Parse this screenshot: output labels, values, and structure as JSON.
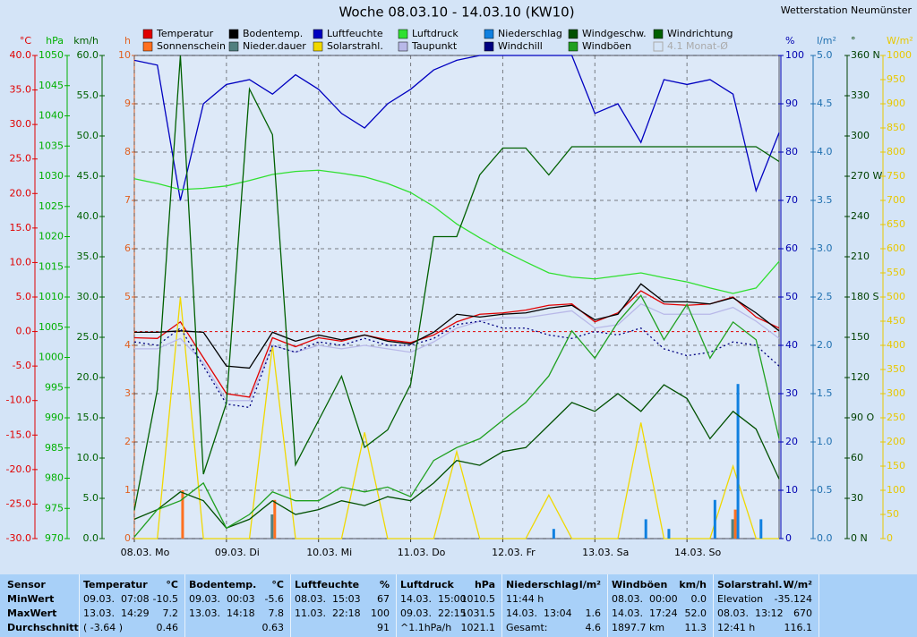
{
  "chart_data": {
    "type": "line",
    "title": "Woche 08.03.10 - 14.03.10 (KW10)",
    "station": "Wetterstation Neumünster",
    "x": [
      0,
      6,
      12,
      18,
      24,
      30,
      36,
      42,
      48,
      54,
      60,
      66,
      72,
      78,
      84,
      90,
      96,
      102,
      108,
      114,
      120,
      126,
      132,
      138,
      144,
      150,
      156,
      162,
      168
    ],
    "xlim": [
      0,
      168
    ],
    "xticks": [
      {
        "value": 0,
        "label": "08.03. Mo"
      },
      {
        "value": 24,
        "label": "09.03. Di"
      },
      {
        "value": 48,
        "label": "10.03. Mi"
      },
      {
        "value": 72,
        "label": "11.03. Do"
      },
      {
        "value": 96,
        "label": "12.03. Fr"
      },
      {
        "value": 120,
        "label": "13.03. Sa"
      },
      {
        "value": 144,
        "label": "14.03. So"
      }
    ],
    "grid": true,
    "left_axes": [
      {
        "unit": "°C",
        "color": "#e00000",
        "lim": [
          -30,
          40
        ],
        "ticks": [
          {
            "value": 40,
            "label": "40.0"
          },
          {
            "value": 35,
            "label": "35.0"
          },
          {
            "value": 30,
            "label": "30.0"
          },
          {
            "value": 25,
            "label": "25.0"
          },
          {
            "value": 20,
            "label": "20.0"
          },
          {
            "value": 15,
            "label": "15.0"
          },
          {
            "value": 10,
            "label": "10.0"
          },
          {
            "value": 5,
            "label": "5.0"
          },
          {
            "value": 0,
            "label": "0.0"
          },
          {
            "value": -5,
            "label": "-5.0"
          },
          {
            "value": -10,
            "label": "-10.0"
          },
          {
            "value": -15,
            "label": "-15.0"
          },
          {
            "value": -20,
            "label": "-20.0"
          },
          {
            "value": -25,
            "label": "-25.0"
          },
          {
            "value": -30,
            "label": "-30.0"
          }
        ]
      },
      {
        "unit": "hPa",
        "color": "#00b000",
        "lim": [
          970,
          1050
        ],
        "ticks": [
          1050,
          1045,
          1040,
          1035,
          1030,
          1025,
          1020,
          1015,
          1010,
          1005,
          1000,
          995,
          990,
          985,
          980,
          975,
          970
        ]
      },
      {
        "unit": "km/h",
        "color": "#006000",
        "lim": [
          0,
          60
        ],
        "ticks": [
          {
            "value": 60,
            "label": "60.0"
          },
          {
            "value": 55,
            "label": "55.0"
          },
          {
            "value": 50,
            "label": "50.0"
          },
          {
            "value": 45,
            "label": "45.0"
          },
          {
            "value": 40,
            "label": "40.0"
          },
          {
            "value": 35,
            "label": "35.0"
          },
          {
            "value": 30,
            "label": "30.0"
          },
          {
            "value": 25,
            "label": "25.0"
          },
          {
            "value": 20,
            "label": "20.0"
          },
          {
            "value": 15,
            "label": "15.0"
          },
          {
            "value": 10,
            "label": "10.0"
          },
          {
            "value": 5,
            "label": "5.0"
          },
          {
            "value": 0,
            "label": "0.0"
          }
        ]
      },
      {
        "unit": "h",
        "color": "#e06020",
        "lim": [
          0,
          10
        ],
        "ticks": [
          10,
          9,
          8,
          7,
          6,
          5,
          4,
          3,
          2,
          1,
          0
        ]
      }
    ],
    "right_axes": [
      {
        "unit": "%",
        "color": "#0000b0",
        "lim": [
          0,
          100
        ],
        "ticks": [
          100,
          90,
          80,
          70,
          60,
          50,
          40,
          30,
          20,
          10,
          0
        ]
      },
      {
        "unit": "l/m²",
        "color": "#2070b0",
        "lim": [
          0,
          5
        ],
        "ticks": [
          {
            "value": 5,
            "label": "5.0"
          },
          {
            "value": 4.5,
            "label": "4.5"
          },
          {
            "value": 4,
            "label": "4.0"
          },
          {
            "value": 3.5,
            "label": "3.5"
          },
          {
            "value": 3,
            "label": "3.0"
          },
          {
            "value": 2.5,
            "label": "2.5"
          },
          {
            "value": 2,
            "label": "2.0"
          },
          {
            "value": 1.5,
            "label": "1.5"
          },
          {
            "value": 1,
            "label": "1.0"
          },
          {
            "value": 0.5,
            "label": "0.5"
          },
          {
            "value": 0,
            "label": "0.0"
          }
        ]
      },
      {
        "unit": "°",
        "color": "#004000",
        "lim": [
          0,
          360
        ],
        "ticks": [
          {
            "value": 360,
            "label": "360 N"
          },
          330,
          300,
          {
            "value": 270,
            "label": "270 W"
          },
          240,
          210,
          {
            "value": 180,
            "label": "180 S"
          },
          150,
          120,
          {
            "value": 90,
            "label": "90 O"
          },
          60,
          30,
          {
            "value": 0,
            "label": "0 N"
          }
        ]
      },
      {
        "unit": "W/m²",
        "color": "#e8c800",
        "lim": [
          0,
          1000
        ],
        "ticks": [
          1000,
          950,
          900,
          850,
          800,
          750,
          700,
          650,
          600,
          550,
          500,
          450,
          400,
          350,
          300,
          250,
          200,
          150,
          100,
          50,
          0
        ]
      }
    ],
    "series": [
      {
        "name": "Temperatur",
        "color": "#e00000",
        "axis": "°C",
        "style": "line",
        "values": [
          -0.9,
          -1,
          1.4,
          -3.8,
          -9,
          -9.5,
          -0.9,
          -2.2,
          -0.9,
          -1.4,
          -0.5,
          -1.2,
          -1.6,
          -0.5,
          1.4,
          2.5,
          2.7,
          3.1,
          3.8,
          4,
          1.4,
          2.7,
          5.9,
          4,
          3.8,
          4,
          5,
          2.1,
          0.5
        ]
      },
      {
        "name": "Sonnenschein",
        "color": "#ff7020",
        "axis": "h",
        "style": "bar",
        "values": [
          0,
          0,
          1,
          0,
          0,
          0,
          0.8,
          0,
          0,
          0,
          0,
          0,
          0,
          0,
          0,
          0,
          0,
          0,
          0,
          0,
          0,
          0,
          0,
          0,
          0,
          0,
          0.6,
          0,
          0
        ]
      },
      {
        "name": "Bodentemp.",
        "color": "#000000",
        "axis": "°C",
        "style": "line",
        "values": [
          -0.1,
          -0.1,
          0.1,
          -0.1,
          -5,
          -5.3,
          -0.1,
          -1.4,
          -0.5,
          -1.2,
          -0.5,
          -1.4,
          -1.8,
          -0.1,
          2.5,
          2.1,
          2.5,
          2.7,
          3.4,
          3.8,
          1.7,
          2.5,
          6.9,
          4.3,
          4.3,
          4,
          4.9,
          2.7,
          0.1
        ]
      },
      {
        "name": "Nieder.dauer",
        "color": "#508080",
        "axis": "h",
        "style": "bar",
        "values": [
          0,
          0,
          0,
          0,
          0,
          0,
          0.5,
          0,
          0,
          0,
          0,
          0,
          0,
          0,
          0,
          0,
          0,
          0,
          0,
          0,
          0,
          0,
          0,
          0,
          0,
          0,
          0.4,
          0,
          0
        ]
      },
      {
        "name": "Luftfeuchte",
        "color": "#0000c0",
        "axis": "%",
        "style": "line",
        "values": [
          99,
          98,
          70,
          90,
          94,
          95,
          92,
          96,
          93,
          88,
          85,
          90,
          93,
          97,
          99,
          100,
          100,
          100,
          100,
          100,
          88,
          90,
          82,
          95,
          94,
          95,
          92,
          72,
          84
        ]
      },
      {
        "name": "Solarstrahl.",
        "color": "#f0d800",
        "axis": "W/m²",
        "style": "line",
        "values": [
          0,
          0,
          500,
          0,
          0,
          0,
          400,
          0,
          0,
          0,
          220,
          0,
          0,
          0,
          180,
          0,
          0,
          0,
          90,
          0,
          0,
          0,
          240,
          0,
          0,
          0,
          150,
          0,
          0
        ]
      },
      {
        "name": "Luftdruck",
        "color": "#30e030",
        "axis": "hPa",
        "style": "line",
        "values": [
          1029.6,
          1028.8,
          1027.8,
          1028,
          1028.4,
          1029.3,
          1030.3,
          1030.8,
          1031,
          1030.5,
          1029.9,
          1028.8,
          1027.3,
          1025,
          1022.1,
          1019.8,
          1017.7,
          1015.8,
          1014,
          1013.3,
          1013,
          1013.5,
          1014,
          1013.2,
          1012.5,
          1011.5,
          1010.6,
          1011.5,
          1015.9
        ]
      },
      {
        "name": "Taupunkt",
        "color": "#b8b8e8",
        "axis": "°C",
        "style": "line",
        "values": [
          -2.5,
          -2.5,
          -1,
          -4.5,
          -10,
          -10,
          -2,
          -3,
          -2,
          -2.5,
          -2,
          -2.5,
          -3,
          -1.5,
          0.5,
          1.5,
          2,
          2,
          2.5,
          3,
          0.5,
          1,
          4,
          2.5,
          2.5,
          2.5,
          3.5,
          1.5,
          -1
        ]
      },
      {
        "name": "Niederschlag",
        "color": "#1080e0",
        "axis": "l/m²",
        "style": "bar",
        "values": [
          0,
          0,
          0,
          0,
          0,
          0,
          0,
          0,
          0,
          0,
          0,
          0,
          0,
          0,
          0,
          0,
          0,
          0,
          0.1,
          0,
          0,
          0,
          0.2,
          0.1,
          0,
          0.4,
          1.6,
          0.2,
          0
        ]
      },
      {
        "name": "Windchill",
        "color": "#000080",
        "axis": "°C",
        "style": "dotted",
        "values": [
          -1.5,
          -2,
          0.5,
          -5,
          -10.5,
          -11,
          -2,
          -3,
          -1.5,
          -2,
          -1,
          -2,
          -2,
          -1,
          1,
          1.5,
          0.5,
          0.5,
          -0.5,
          -1,
          0,
          -0.5,
          0.5,
          -2.5,
          -3.5,
          -3,
          -1.5,
          -2,
          -5
        ]
      },
      {
        "name": "Windgeschw.",
        "color": "#005000",
        "axis": "km/h",
        "style": "line",
        "values": [
          2.4,
          3.6,
          5.8,
          4.7,
          1.3,
          2.4,
          4.7,
          3,
          3.6,
          4.7,
          4.1,
          5.2,
          4.7,
          6.9,
          9.7,
          9.1,
          10.8,
          11.3,
          14.1,
          16.9,
          15.8,
          18,
          15.8,
          19.1,
          17.4,
          12.4,
          15.8,
          13.6,
          7.4
        ]
      },
      {
        "name": "Windböen",
        "color": "#20a020",
        "axis": "km/h",
        "style": "line",
        "values": [
          0.2,
          3.6,
          4.7,
          6.9,
          1.3,
          3,
          5.8,
          4.7,
          4.7,
          6.4,
          5.8,
          6.4,
          5.2,
          9.7,
          11.3,
          12.4,
          14.7,
          16.9,
          20.2,
          25.8,
          22.4,
          26.9,
          30.2,
          24.7,
          29.1,
          22.4,
          26.9,
          24.7,
          12.4
        ]
      },
      {
        "name": "Windrichtung",
        "color": "#006000",
        "axis": "°",
        "style": "line",
        "values": [
          21,
          111,
          360,
          48,
          101,
          335,
          301,
          55,
          88,
          121,
          68,
          81,
          115,
          225,
          225,
          271,
          291,
          291,
          271,
          292,
          292,
          292,
          292,
          292,
          292,
          292,
          292,
          292,
          281
        ]
      }
    ],
    "monthly_average": {
      "name": "4.1 Monat-Ø",
      "checked": false
    }
  },
  "table": {
    "row_labels": [
      "Sensor",
      "MinWert",
      "MaxWert",
      "Durchschnitt"
    ],
    "columns": [
      {
        "title": "Temperatur",
        "unit": "°C",
        "rows": [
          {
            "left": "09.03.  07:08",
            "right": "-10.5"
          },
          {
            "left": "13.03.  14:29",
            "right": "7.2"
          },
          {
            "left": "( -3.64 )",
            "right": "0.46"
          }
        ]
      },
      {
        "title": "Bodentemp.",
        "unit": "°C",
        "rows": [
          {
            "left": "09.03.  00:03",
            "right": "-5.6"
          },
          {
            "left": "13.03.  14:18",
            "right": "7.8"
          },
          {
            "right": "0.63"
          }
        ]
      },
      {
        "title": "Luftfeuchte",
        "unit": "%",
        "rows": [
          {
            "left": "08.03.  15:03",
            "right": "67"
          },
          {
            "left": "11.03.  22:18",
            "right": "100"
          },
          {
            "right": "91"
          }
        ]
      },
      {
        "title": "Luftdruck",
        "unit": "hPa",
        "rows": [
          {
            "left": "14.03.  15:00",
            "right": "1010.5"
          },
          {
            "left": "09.03.  22:15",
            "right": "1031.5"
          },
          {
            "left": "^1.1hPa/h",
            "right": "1021.1"
          }
        ]
      },
      {
        "title": "Niederschlag",
        "unit": "l/m²",
        "rows": [
          {
            "left": "11:44 h"
          },
          {
            "left": "14.03.  13:04",
            "right": "1.6"
          },
          {
            "left": "Gesamt:",
            "right": "4.6"
          }
        ]
      },
      {
        "title": "Windböen",
        "unit": "km/h",
        "rows": [
          {
            "left": "08.03.  00:00",
            "right": "0.0"
          },
          {
            "left": "14.03.  17:24",
            "right": "52.0"
          },
          {
            "left": "1897.7 km",
            "right": "11.3"
          }
        ]
      },
      {
        "title": "Solarstrahl.",
        "unit": "W/m²",
        "rows": [
          {
            "left": "Elevation",
            "right": "-35.124"
          },
          {
            "left": "08.03.  13:12",
            "right": "670"
          },
          {
            "left": "12:41 h",
            "right": "116.1"
          }
        ]
      }
    ]
  }
}
